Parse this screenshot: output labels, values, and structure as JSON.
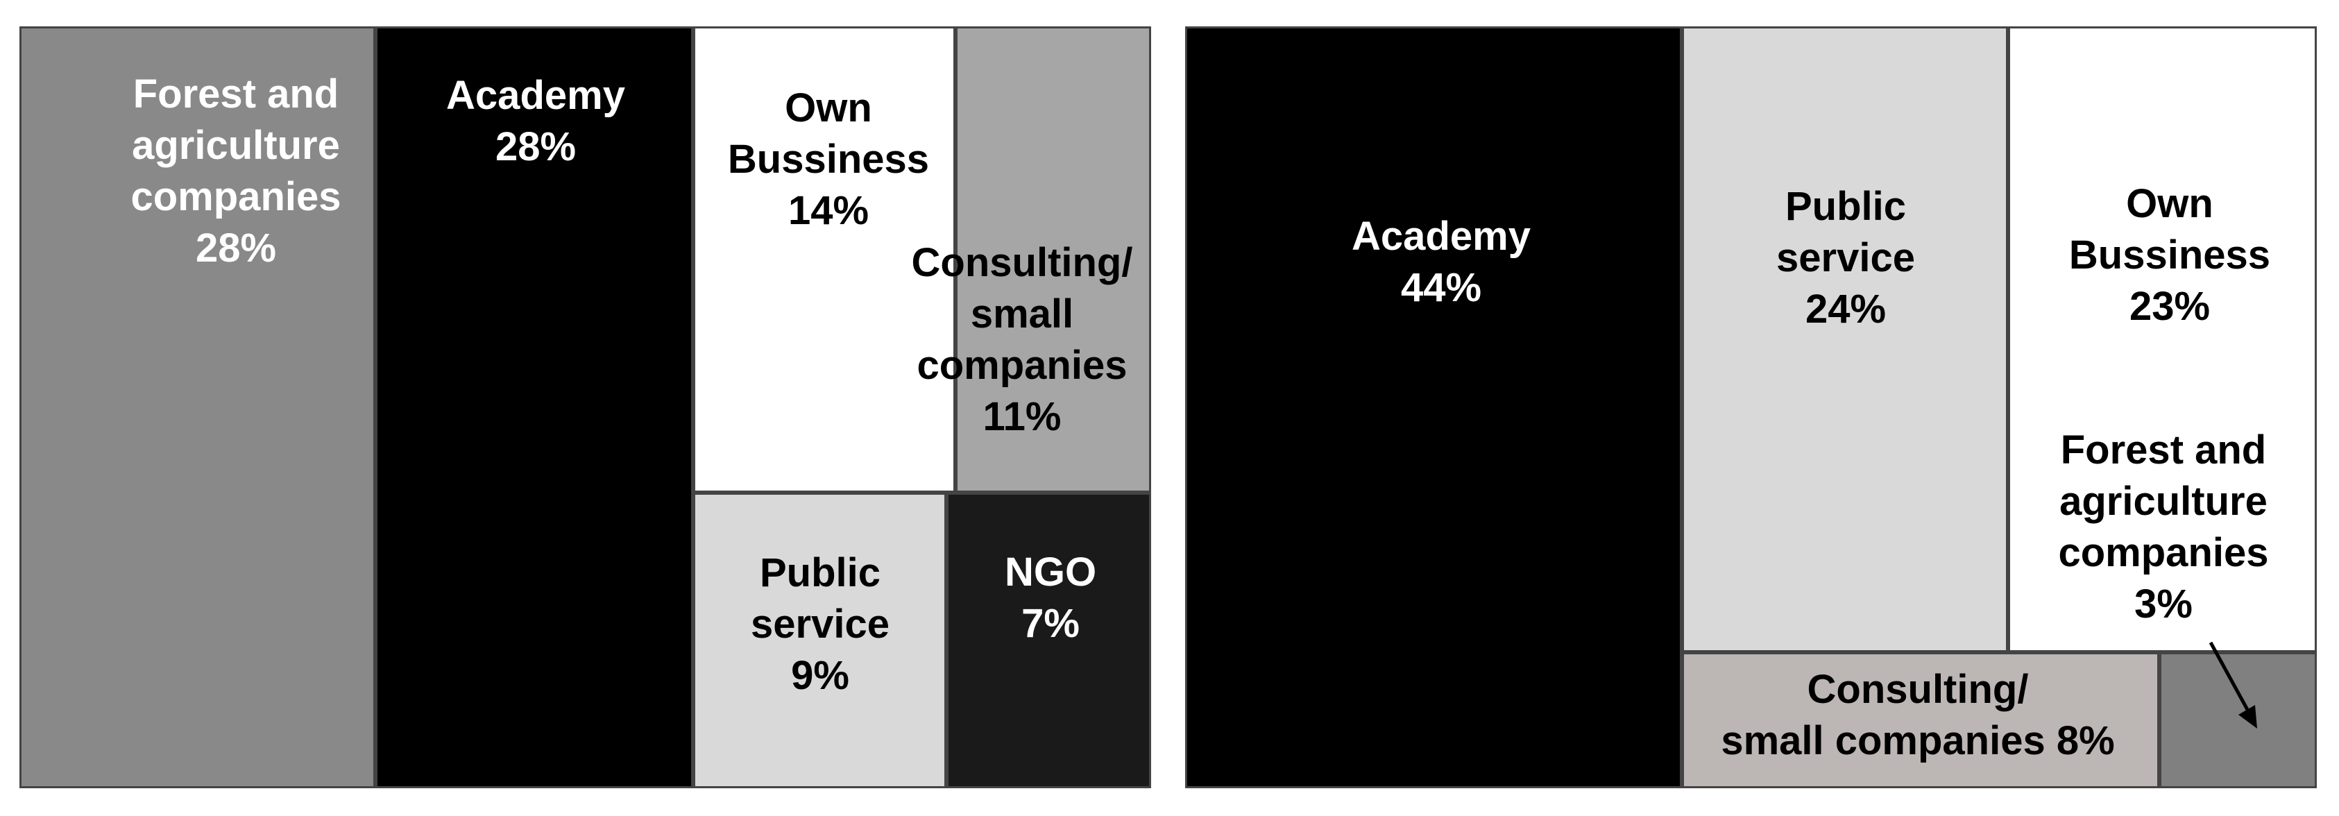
{
  "chart_data": [
    {
      "type": "treemap",
      "items": [
        {
          "label": "Forest and\nagriculture\ncompanies\n28%",
          "category": "Forest and agriculture companies",
          "value": 28,
          "color": "#898989",
          "text_color": "#ffffff"
        },
        {
          "label": "Academy\n28%",
          "category": "Academy",
          "value": 28,
          "color": "#000000",
          "text_color": "#ffffff"
        },
        {
          "label": "Own\nBussiness\n14%",
          "category": "Own Bussiness",
          "value": 14,
          "color": "#ffffff",
          "text_color": "#000000"
        },
        {
          "label": "Consulting/\nsmall\ncompanies\n11%",
          "category": "Consulting/ small companies",
          "value": 11,
          "color": "#a6a6a6",
          "text_color": "#000000"
        },
        {
          "label": "Public\nservice\n9%",
          "category": "Public service",
          "value": 9,
          "color": "#d9d9d9",
          "text_color": "#000000"
        },
        {
          "label": "NGO\n7%",
          "category": "NGO",
          "value": 7,
          "color": "#1a1a1a",
          "text_color": "#ffffff"
        }
      ]
    },
    {
      "type": "treemap",
      "items": [
        {
          "label": "Academy\n44%",
          "category": "Academy",
          "value": 44,
          "color": "#000000",
          "text_color": "#ffffff"
        },
        {
          "label": "Public\nservice\n24%",
          "category": "Public service",
          "value": 24,
          "color": "#d9d9d9",
          "text_color": "#000000"
        },
        {
          "label": "Own\nBussiness\n23%",
          "category": "Own Bussiness",
          "value": 23,
          "color": "#ffffff",
          "text_color": "#000000"
        },
        {
          "label": "Consulting/\nsmall companies 8%",
          "category": "Consulting/ small companies",
          "value": 8,
          "color": "#bcb6b4",
          "text_color": "#000000"
        },
        {
          "label": "Forest and\nagriculture\ncompanies\n3%",
          "category": "Forest and agriculture companies",
          "value": 3,
          "color": "#808080",
          "text_color": "#000000",
          "label_outside": true
        }
      ]
    }
  ]
}
